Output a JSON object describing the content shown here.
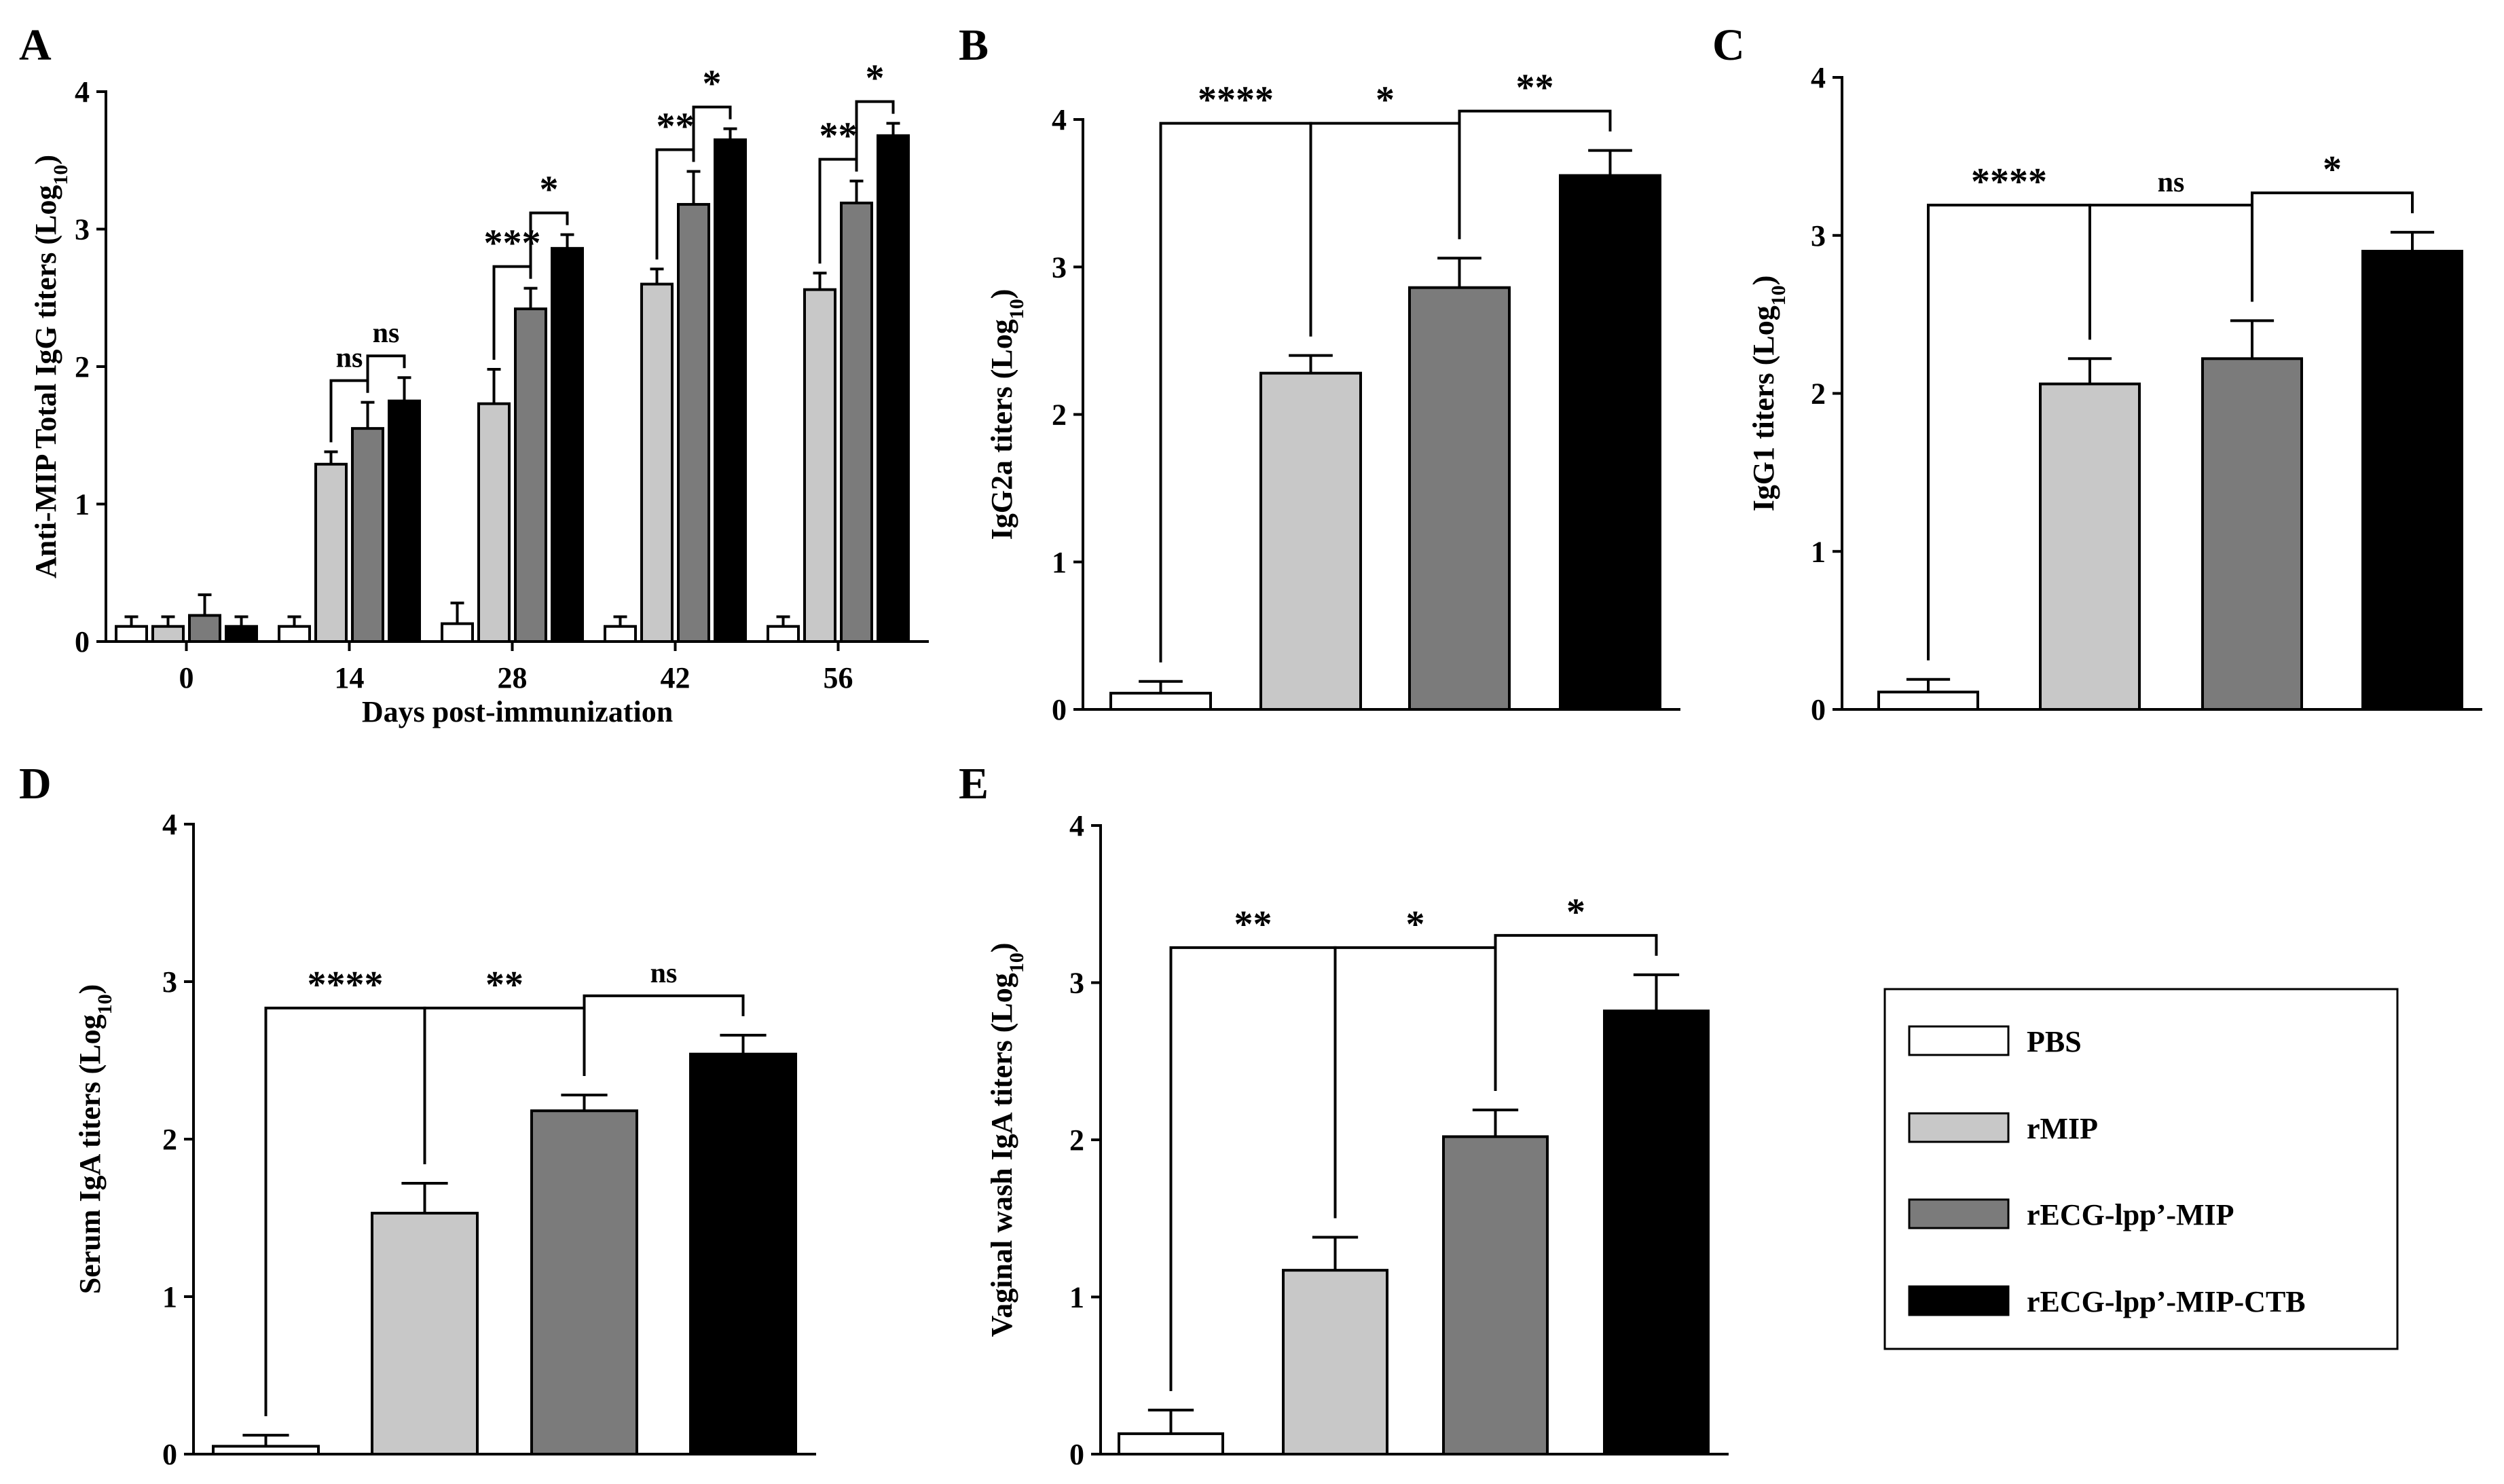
{
  "series_colors": {
    "PBS": "#ffffff",
    "rMIP": "#c8c8c8",
    "rECG-lpp'-MIP": "#7b7b7b",
    "rECG-lpp'-MIP-CTB": "#000000"
  },
  "legend": {
    "items": [
      {
        "label": "PBS",
        "color": "#ffffff"
      },
      {
        "label": "rMIP",
        "color": "#c8c8c8"
      },
      {
        "label": "rECG-lpp’-MIP",
        "color": "#7b7b7b"
      },
      {
        "label": "rECG-lpp’-MIP-CTB",
        "color": "#000000"
      }
    ]
  },
  "chart_data": [
    {
      "panel": "A",
      "type": "bar",
      "title": "",
      "xlabel": "Days post-immunization",
      "ylabel_main": "Anti-MIP Total IgG titers (Log",
      "ylabel_sub": "10",
      "ylabel_end": ")",
      "ylim": [
        0,
        4
      ],
      "yticks": [
        "0",
        "1",
        "2",
        "3",
        "4"
      ],
      "categories": [
        "0",
        "14",
        "28",
        "42",
        "56"
      ],
      "series": [
        {
          "name": "PBS",
          "values": [
            0.11,
            0.11,
            0.13,
            0.11,
            0.11
          ],
          "errors": [
            0.07,
            0.07,
            0.15,
            0.07,
            0.07
          ]
        },
        {
          "name": "rMIP",
          "values": [
            0.11,
            1.29,
            1.73,
            2.6,
            2.56
          ],
          "errors": [
            0.07,
            0.09,
            0.25,
            0.11,
            0.12
          ]
        },
        {
          "name": "rECG-lpp’-MIP",
          "values": [
            0.19,
            1.55,
            2.42,
            3.18,
            3.19
          ],
          "errors": [
            0.15,
            0.19,
            0.15,
            0.24,
            0.16
          ]
        },
        {
          "name": "rECG-lpp’-MIP-CTB",
          "values": [
            0.11,
            1.75,
            2.86,
            3.65,
            3.68
          ],
          "errors": [
            0.07,
            0.17,
            0.1,
            0.08,
            0.09
          ]
        }
      ],
      "brackets": [
        {
          "group": 1,
          "a": 1,
          "b": 2,
          "label": "ns"
        },
        {
          "group": 1,
          "a": 2,
          "b": 3,
          "label": "ns"
        },
        {
          "group": 2,
          "a": 1,
          "b": 2,
          "label": "***"
        },
        {
          "group": 2,
          "a": 2,
          "b": 3,
          "label": "*"
        },
        {
          "group": 3,
          "a": 1,
          "b": 2,
          "label": "**"
        },
        {
          "group": 3,
          "a": 2,
          "b": 3,
          "label": "*"
        },
        {
          "group": 4,
          "a": 1,
          "b": 2,
          "label": "**"
        },
        {
          "group": 4,
          "a": 2,
          "b": 3,
          "label": "*"
        }
      ]
    },
    {
      "panel": "B",
      "type": "bar",
      "title": "",
      "xlabel": "",
      "ylabel_main": "IgG2a  titers (Log",
      "ylabel_sub": "10",
      "ylabel_end": ")",
      "ylim": [
        0,
        4
      ],
      "yticks": [
        "0",
        "1",
        "2",
        "3",
        "4"
      ],
      "categories": [
        "PBS",
        "rMIP",
        "rECG-lpp’-MIP",
        "rECG-lpp’-MIP-CTB"
      ],
      "values": [
        0.11,
        2.28,
        2.86,
        3.62
      ],
      "errors": [
        0.08,
        0.12,
        0.2,
        0.17
      ],
      "brackets": [
        {
          "a": 0,
          "b": 1,
          "label": "****"
        },
        {
          "a": 1,
          "b": 2,
          "label": "*"
        },
        {
          "a": 2,
          "b": 3,
          "label": "**"
        }
      ]
    },
    {
      "panel": "C",
      "type": "bar",
      "title": "",
      "xlabel": "",
      "ylabel_main": "IgG1 titers (Log",
      "ylabel_sub": "10",
      "ylabel_end": ")",
      "ylim": [
        0,
        4
      ],
      "yticks": [
        "0",
        "1",
        "2",
        "3",
        "4"
      ],
      "categories": [
        "PBS",
        "rMIP",
        "rECG-lpp’-MIP",
        "rECG-lpp’-MIP-CTB"
      ],
      "values": [
        0.11,
        2.06,
        2.22,
        2.9
      ],
      "errors": [
        0.08,
        0.16,
        0.24,
        0.12
      ],
      "brackets": [
        {
          "a": 0,
          "b": 1,
          "label": "****"
        },
        {
          "a": 1,
          "b": 2,
          "label": "ns"
        },
        {
          "a": 2,
          "b": 3,
          "label": "*"
        }
      ]
    },
    {
      "panel": "D",
      "type": "bar",
      "title": "",
      "xlabel": "",
      "ylabel_main": "Serum IgA titers (Log",
      "ylabel_sub": "10",
      "ylabel_end": ")",
      "ylim": [
        0,
        4
      ],
      "yticks": [
        "0",
        "1",
        "2",
        "3",
        "4"
      ],
      "categories": [
        "PBS",
        "rMIP",
        "rECG-lpp’-MIP",
        "rECG-lpp’-MIP-CTB"
      ],
      "values": [
        0.05,
        1.53,
        2.18,
        2.54
      ],
      "errors": [
        0.07,
        0.19,
        0.1,
        0.12
      ],
      "brackets": [
        {
          "a": 0,
          "b": 1,
          "label": "****"
        },
        {
          "a": 1,
          "b": 2,
          "label": "**"
        },
        {
          "a": 2,
          "b": 3,
          "label": "ns"
        }
      ]
    },
    {
      "panel": "E",
      "type": "bar",
      "title": "",
      "xlabel": "",
      "ylabel_main": "Vaginal wash IgA titers (Log",
      "ylabel_sub": "10",
      "ylabel_end": ")",
      "ylim": [
        0,
        4
      ],
      "yticks": [
        "0",
        "1",
        "2",
        "3",
        "4"
      ],
      "categories": [
        "PBS",
        "rMIP",
        "rECG-lpp’-MIP",
        "rECG-lpp’-MIP-CTB"
      ],
      "values": [
        0.13,
        1.17,
        2.02,
        2.82
      ],
      "errors": [
        0.15,
        0.21,
        0.17,
        0.23
      ],
      "brackets": [
        {
          "a": 0,
          "b": 1,
          "label": "**"
        },
        {
          "a": 1,
          "b": 2,
          "label": "*"
        },
        {
          "a": 2,
          "b": 3,
          "label": "*"
        }
      ]
    }
  ]
}
